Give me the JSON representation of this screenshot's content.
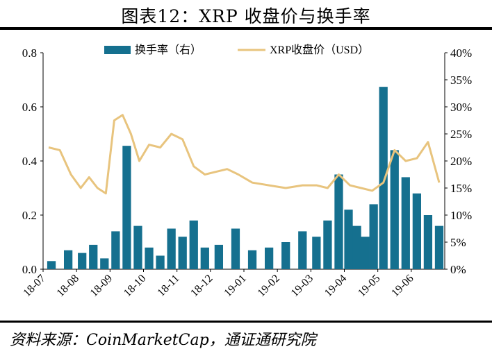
{
  "header": {
    "title": "图表12：XRP 收盘价与换手率"
  },
  "footer": {
    "source": "资料来源：CoinMarketCap，通证通研究院"
  },
  "chart_data": {
    "type": "bar+line",
    "title": "图表12：XRP 收盘价与换手率",
    "categories": [
      "18-07",
      "18-08",
      "18-09",
      "18-10",
      "18-11",
      "18-12",
      "19-01",
      "19-02",
      "19-03",
      "19-04",
      "19-05",
      "19-06"
    ],
    "left_axis": {
      "ylim": [
        0,
        0.8
      ],
      "ticks": [
        "0.0",
        "0.2",
        "0.4",
        "0.6",
        "0.8"
      ]
    },
    "right_axis": {
      "ylim": [
        0,
        40
      ],
      "ticks": [
        "0%",
        "5%",
        "10%",
        "15%",
        "20%",
        "25%",
        "30%",
        "35%",
        "40%"
      ]
    },
    "legend": {
      "placement": "top-center"
    },
    "series": [
      {
        "name": "换手率（右）",
        "type": "bar",
        "axis": "right",
        "color": "#15708f",
        "x": [
          "18-07",
          "18-07",
          "18-08",
          "18-08",
          "18-08",
          "18-09",
          "18-09",
          "18-09",
          "18-10",
          "18-10",
          "18-10",
          "18-11",
          "18-11",
          "18-11",
          "18-12",
          "18-12",
          "19-01",
          "19-01",
          "19-02",
          "19-02",
          "19-03",
          "19-03",
          "19-03",
          "19-04",
          "19-04",
          "19-04",
          "19-04",
          "19-05",
          "19-05",
          "19-05",
          "19-06",
          "19-06",
          "19-06"
        ],
        "values": [
          1.5,
          3.5,
          3.0,
          4.5,
          2.0,
          7.0,
          22.8,
          8.0,
          4.0,
          2.5,
          7.5,
          6.0,
          9.0,
          4.0,
          4.5,
          7.5,
          3.5,
          4.0,
          5.0,
          7.0,
          6.0,
          9.0,
          17.5,
          11.0,
          8.0,
          6.0,
          12.0,
          33.7,
          22.0,
          17.0,
          14.0,
          10.0,
          8.0
        ]
      },
      {
        "name": "XRP收盘价（USD）",
        "type": "line",
        "axis": "left",
        "color": "#e8c47e",
        "x": [
          "18-07",
          "18-07",
          "18-07",
          "18-08",
          "18-08",
          "18-08",
          "18-08",
          "18-09",
          "18-09",
          "18-09",
          "18-09",
          "18-10",
          "18-10",
          "18-10",
          "18-11",
          "18-11",
          "18-11",
          "18-12",
          "18-12",
          "18-12",
          "19-01",
          "19-01",
          "19-02",
          "19-02",
          "19-03",
          "19-03",
          "19-03",
          "19-04",
          "19-04",
          "19-04",
          "19-05",
          "19-05",
          "19-05",
          "19-06",
          "19-06",
          "19-06"
        ],
        "values": [
          0.45,
          0.44,
          0.35,
          0.3,
          0.34,
          0.3,
          0.28,
          0.55,
          0.57,
          0.5,
          0.4,
          0.46,
          0.45,
          0.5,
          0.48,
          0.38,
          0.35,
          0.36,
          0.37,
          0.35,
          0.32,
          0.31,
          0.3,
          0.31,
          0.31,
          0.3,
          0.35,
          0.31,
          0.3,
          0.29,
          0.32,
          0.44,
          0.4,
          0.41,
          0.47,
          0.32
        ]
      }
    ]
  }
}
